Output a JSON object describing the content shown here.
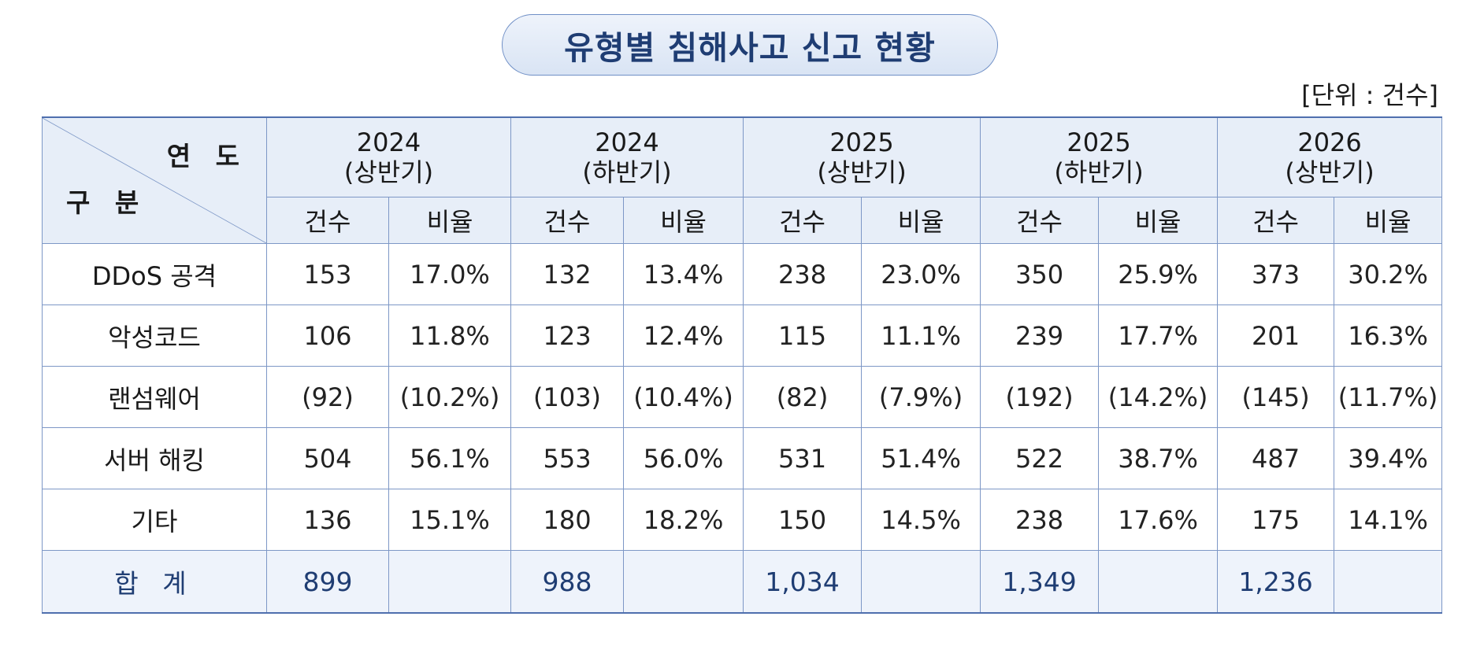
{
  "title": "유형별 침해사고 신고 현황",
  "unit_label": "[단위 : 건수]",
  "header": {
    "corner_year": "연 도",
    "corner_category": "구 분",
    "periods": [
      {
        "year": "2024",
        "half": "(상반기)"
      },
      {
        "year": "2024",
        "half": "(하반기)"
      },
      {
        "year": "2025",
        "half": "(상반기)"
      },
      {
        "year": "2025",
        "half": "(하반기)"
      },
      {
        "year": "2026",
        "half": "(상반기)"
      }
    ],
    "count_label": "건수",
    "ratio_label": "비율"
  },
  "rows": [
    {
      "category": "DDoS 공격",
      "cells": [
        {
          "count": "153",
          "ratio": "17.0%"
        },
        {
          "count": "132",
          "ratio": "13.4%"
        },
        {
          "count": "238",
          "ratio": "23.0%"
        },
        {
          "count": "350",
          "ratio": "25.9%"
        },
        {
          "count": "373",
          "ratio": "30.2%"
        }
      ]
    },
    {
      "category": "악성코드",
      "cells": [
        {
          "count": "106",
          "ratio": "11.8%"
        },
        {
          "count": "123",
          "ratio": "12.4%"
        },
        {
          "count": "115",
          "ratio": "11.1%"
        },
        {
          "count": "239",
          "ratio": "17.7%"
        },
        {
          "count": "201",
          "ratio": "16.3%"
        }
      ]
    },
    {
      "category": "랜섬웨어",
      "cells": [
        {
          "count": "(92)",
          "ratio": "(10.2%)"
        },
        {
          "count": "(103)",
          "ratio": "(10.4%)"
        },
        {
          "count": "(82)",
          "ratio": "(7.9%)"
        },
        {
          "count": "(192)",
          "ratio": "(14.2%)"
        },
        {
          "count": "(145)",
          "ratio": "(11.7%)"
        }
      ]
    },
    {
      "category": "서버 해킹",
      "cells": [
        {
          "count": "504",
          "ratio": "56.1%"
        },
        {
          "count": "553",
          "ratio": "56.0%"
        },
        {
          "count": "531",
          "ratio": "51.4%"
        },
        {
          "count": "522",
          "ratio": "38.7%"
        },
        {
          "count": "487",
          "ratio": "39.4%"
        }
      ]
    },
    {
      "category": "기타",
      "cells": [
        {
          "count": "136",
          "ratio": "15.1%"
        },
        {
          "count": "180",
          "ratio": "18.2%"
        },
        {
          "count": "150",
          "ratio": "14.5%"
        },
        {
          "count": "238",
          "ratio": "17.6%"
        },
        {
          "count": "175",
          "ratio": "14.1%"
        }
      ]
    }
  ],
  "total": {
    "label": "합 계",
    "counts": [
      "899",
      "988",
      "1,034",
      "1,349",
      "1,236"
    ]
  },
  "colors": {
    "accent": "#1f3d73",
    "header_bg": "#e7eef8",
    "border": "#7d97c6"
  }
}
